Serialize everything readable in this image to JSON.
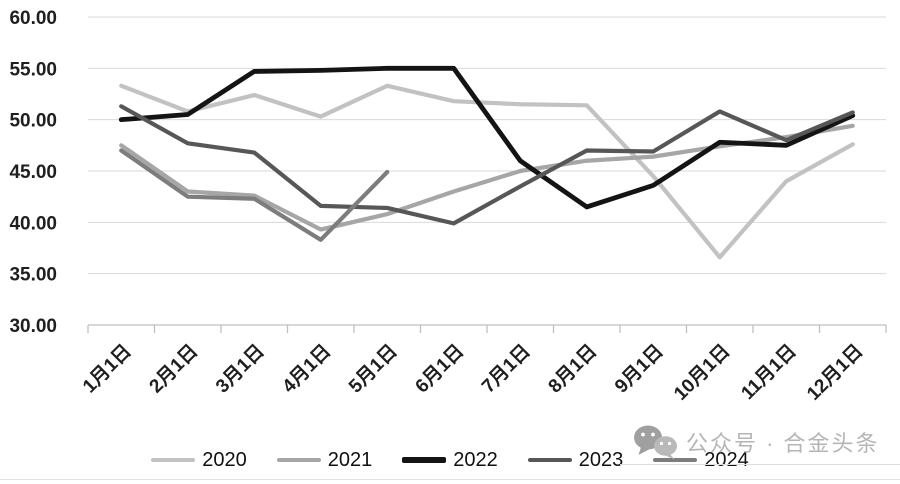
{
  "chart_data": {
    "type": "line",
    "title": "",
    "xlabel": "",
    "ylabel": "",
    "categories": [
      "1月1日",
      "2月1日",
      "3月1日",
      "4月1日",
      "5月1日",
      "6月1日",
      "7月1日",
      "8月1日",
      "9月1日",
      "10月1日",
      "11月1日",
      "12月1日"
    ],
    "y_ticks": [
      "60.00",
      "55.00",
      "50.00",
      "45.00",
      "40.00",
      "35.00",
      "30.00"
    ],
    "ylim": [
      30,
      60
    ],
    "grid": true,
    "legend_position": "bottom",
    "gridline_color": "#d9d9d9",
    "axis_color": "#bfbfbf",
    "series": [
      {
        "name": "2020",
        "color": "#c2c2c2",
        "width": 4.2,
        "values": [
          53.3,
          50.8,
          52.4,
          50.3,
          53.3,
          51.8,
          51.5,
          51.4,
          44.5,
          36.6,
          44.0,
          47.6
        ]
      },
      {
        "name": "2021",
        "color": "#a6a6a6",
        "width": 4.2,
        "values": [
          47.5,
          43.0,
          42.6,
          39.3,
          40.8,
          43.0,
          45.0,
          46.0,
          46.4,
          47.4,
          48.3,
          49.4
        ]
      },
      {
        "name": "2022",
        "color": "#141414",
        "width": 4.8,
        "values": [
          50.0,
          50.5,
          54.7,
          54.8,
          55.0,
          55.0,
          46.0,
          41.5,
          43.6,
          47.8,
          47.5,
          50.4
        ]
      },
      {
        "name": "2023",
        "color": "#575757",
        "width": 4.2,
        "values": [
          51.3,
          47.7,
          46.8,
          41.6,
          41.4,
          39.9,
          43.5,
          47.0,
          46.9,
          50.8,
          48.0,
          50.7
        ]
      },
      {
        "name": "2024",
        "color": "#7d7d7d",
        "width": 4.2,
        "values": [
          47.0,
          42.5,
          42.3,
          38.3,
          44.9
        ]
      }
    ]
  },
  "watermark": {
    "text": "公众号 · 合金头条",
    "icon": "wechat-icon"
  }
}
